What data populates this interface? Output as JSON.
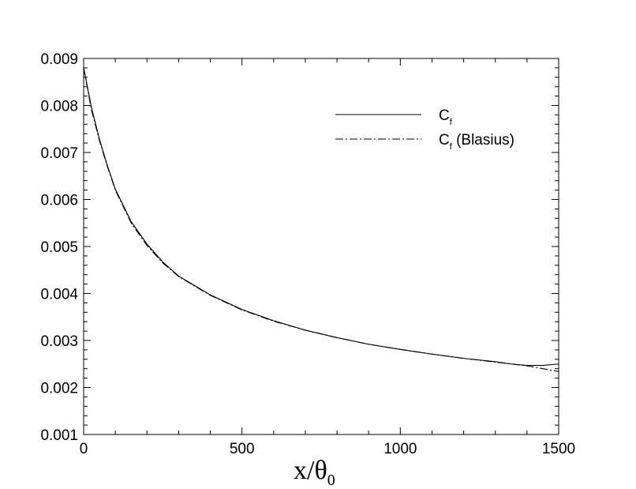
{
  "chart_data": {
    "type": "line",
    "title": "",
    "xlabel": "x/θ",
    "xlabel_subscript": "0",
    "ylabel": "",
    "xlim": [
      0,
      1500
    ],
    "ylim": [
      0.001,
      0.009
    ],
    "grid": false,
    "legend_position": "top-right",
    "x_ticks": [
      0,
      500,
      1000,
      1500
    ],
    "x_tick_labels": [
      "0",
      "500",
      "1000",
      "1500"
    ],
    "y_ticks": [
      0.001,
      0.002,
      0.003,
      0.004,
      0.005,
      0.006,
      0.007,
      0.008,
      0.009
    ],
    "y_tick_labels": [
      "0.001",
      "0.002",
      "0.003",
      "0.004",
      "0.005",
      "0.006",
      "0.007",
      "0.008",
      "0.009"
    ],
    "series": [
      {
        "name": "C",
        "name_subscript": "f",
        "name_suffix": "",
        "line_style": "solid",
        "color": "#000000",
        "x": [
          0,
          25,
          50,
          75,
          100,
          150,
          200,
          250,
          300,
          400,
          500,
          600,
          700,
          800,
          900,
          1000,
          1100,
          1200,
          1300,
          1350,
          1400,
          1450,
          1500
        ],
        "y": [
          0.0088,
          0.00795,
          0.00728,
          0.00672,
          0.00622,
          0.00553,
          0.00505,
          0.00467,
          0.00437,
          0.00397,
          0.00366,
          0.00342,
          0.00322,
          0.00306,
          0.00292,
          0.00281,
          0.00271,
          0.00262,
          0.00255,
          0.0025,
          0.00247,
          0.00247,
          0.0025
        ]
      },
      {
        "name": "C",
        "name_subscript": "f",
        "name_suffix": " (Blasius)",
        "line_style": "dashdot",
        "color": "#000000",
        "x": [
          0,
          25,
          50,
          75,
          100,
          150,
          200,
          250,
          300,
          400,
          500,
          600,
          700,
          800,
          900,
          1000,
          1100,
          1200,
          1300,
          1350,
          1400,
          1450,
          1500
        ],
        "y": [
          0.0088,
          0.0079,
          0.00725,
          0.0067,
          0.0062,
          0.0055,
          0.00502,
          0.00465,
          0.00436,
          0.00396,
          0.00365,
          0.00341,
          0.00322,
          0.00306,
          0.00292,
          0.00281,
          0.00271,
          0.00262,
          0.00254,
          0.0025,
          0.00246,
          0.0024,
          0.00234
        ]
      }
    ]
  }
}
